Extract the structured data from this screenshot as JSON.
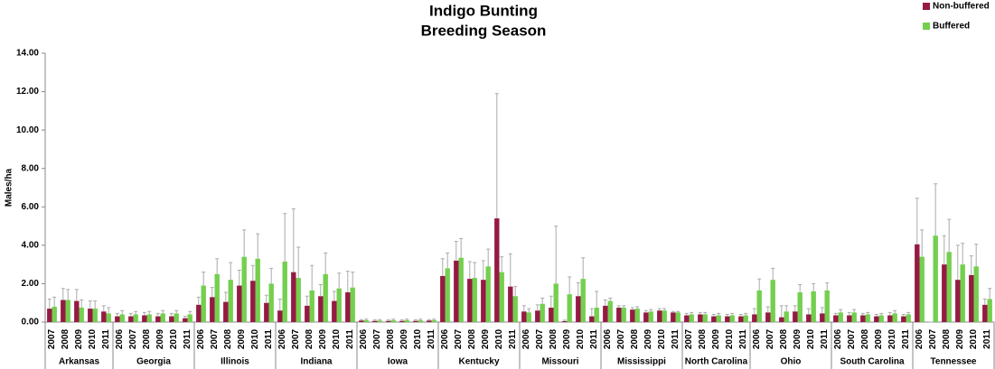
{
  "chart_data": {
    "type": "bar",
    "title": [
      "Indigo Bunting",
      "Breeding Season"
    ],
    "y_label": "Males/ha",
    "groups": [
      {
        "name": "Arkansas",
        "categories": [
          "2007",
          "2008",
          "2009",
          "2010",
          "2011"
        ]
      },
      {
        "name": "Georgia",
        "categories": [
          "2006",
          "2007",
          "2008",
          "2009",
          "2010",
          "2011"
        ]
      },
      {
        "name": "Illinois",
        "categories": [
          "2006",
          "2007",
          "2008",
          "2009",
          "2010",
          "2011"
        ]
      },
      {
        "name": "Indiana",
        "categories": [
          "2006",
          "2007",
          "2008",
          "2009",
          "2010",
          "2011"
        ]
      },
      {
        "name": "Iowa",
        "categories": [
          "2006",
          "2007",
          "2008",
          "2009",
          "2010",
          "2011"
        ]
      },
      {
        "name": "Kentucky",
        "categories": [
          "2006",
          "2007",
          "2008",
          "2009",
          "2010",
          "2011"
        ]
      },
      {
        "name": "Missouri",
        "categories": [
          "2006",
          "2007",
          "2008",
          "2009",
          "2010",
          "2011"
        ]
      },
      {
        "name": "Mississippi",
        "categories": [
          "2006",
          "2007",
          "2008",
          "2009",
          "2010",
          "2011"
        ]
      },
      {
        "name": "North Carolina",
        "categories": [
          "2007",
          "2008",
          "2009",
          "2010",
          "2011"
        ]
      },
      {
        "name": "Ohio",
        "categories": [
          "2006",
          "2007",
          "2008",
          "2009",
          "2010",
          "2011"
        ]
      },
      {
        "name": "South Carolina",
        "categories": [
          "2006",
          "2007",
          "2008",
          "2009",
          "2010",
          "2011"
        ]
      },
      {
        "name": "Tennessee",
        "categories": [
          "2006",
          "2007",
          "2008",
          "2009",
          "2010",
          "2011"
        ]
      }
    ],
    "series": [
      {
        "name": "Non-buffered",
        "color": "#951a43",
        "values": [
          0.7,
          1.15,
          1.1,
          0.7,
          0.55,
          0.3,
          0.3,
          0.35,
          0.3,
          0.3,
          0.2,
          0.9,
          1.3,
          1.05,
          1.9,
          2.15,
          1.0,
          0.6,
          2.6,
          0.85,
          1.35,
          1.1,
          1.55,
          0.08,
          0.06,
          0.06,
          0.06,
          0.06,
          0.08,
          2.4,
          3.2,
          2.25,
          2.2,
          5.4,
          1.85,
          0.55,
          0.6,
          0.75,
          0.05,
          1.35,
          0.3,
          0.85,
          0.75,
          0.65,
          0.5,
          0.6,
          0.5,
          0.35,
          0.4,
          0.3,
          0.3,
          0.3,
          0.4,
          0.5,
          0.25,
          0.55,
          0.4,
          0.45,
          0.35,
          0.35,
          0.35,
          0.3,
          0.35,
          0.3,
          4.05,
          0,
          3.0,
          2.2,
          2.45,
          0.9
        ],
        "errors": [
          0.5,
          0.6,
          0.6,
          0.4,
          0.3,
          0.15,
          0.15,
          0.15,
          0.15,
          0.15,
          0.1,
          0.4,
          0.5,
          0.5,
          0.8,
          0.8,
          0.4,
          0.6,
          3.3,
          0.5,
          0.6,
          0.5,
          1.1,
          0.05,
          0.05,
          0.05,
          0.05,
          0.05,
          0.05,
          0.9,
          1.0,
          0.9,
          1.0,
          6.5,
          1.7,
          0.3,
          0.3,
          0.6,
          0.05,
          0.7,
          0.4,
          0.3,
          0.1,
          0.1,
          0.1,
          0.1,
          0.05,
          0.1,
          0.1,
          0.1,
          0.1,
          0.1,
          0.3,
          0.3,
          0.6,
          0.3,
          0.3,
          0.3,
          0.1,
          0.15,
          0.1,
          0.1,
          0.15,
          0.1,
          2.4,
          0,
          1.5,
          1.8,
          1.0,
          0.3
        ]
      },
      {
        "name": "Buffered",
        "color": "#74cf4f",
        "values": [
          0.8,
          1.15,
          0.75,
          0.7,
          0.45,
          0.4,
          0.4,
          0.4,
          0.45,
          0.45,
          0.4,
          1.9,
          2.5,
          2.2,
          3.4,
          3.3,
          2.0,
          3.15,
          2.3,
          1.65,
          2.5,
          1.75,
          1.8,
          0.1,
          0.08,
          0.1,
          0.1,
          0.1,
          0.1,
          2.8,
          3.35,
          2.3,
          2.9,
          2.6,
          1.35,
          0.5,
          0.95,
          2.0,
          1.45,
          2.25,
          0.75,
          1.1,
          0.75,
          0.7,
          0.55,
          0.6,
          0.5,
          0.4,
          0.4,
          0.35,
          0.35,
          0.35,
          1.65,
          2.2,
          0.55,
          1.55,
          1.6,
          1.65,
          0.5,
          0.5,
          0.4,
          0.35,
          0.45,
          0.4,
          3.4,
          4.5,
          3.65,
          3.0,
          2.9,
          1.2
        ],
        "errors": [
          0.5,
          0.55,
          0.4,
          0.4,
          0.3,
          0.2,
          0.15,
          0.15,
          0.15,
          0.15,
          0.15,
          0.7,
          0.8,
          0.9,
          1.4,
          1.3,
          0.8,
          2.5,
          1.6,
          1.3,
          1.1,
          0.8,
          0.8,
          0.05,
          0.05,
          0.05,
          0.05,
          0.05,
          0.05,
          0.8,
          1.0,
          0.8,
          0.9,
          0.8,
          0.5,
          0.2,
          0.3,
          3.0,
          0.9,
          1.1,
          0.85,
          0.15,
          0.1,
          0.1,
          0.1,
          0.1,
          0.05,
          0.1,
          0.1,
          0.1,
          0.1,
          0.1,
          0.6,
          0.6,
          0.3,
          0.4,
          0.4,
          0.4,
          0.15,
          0.15,
          0.1,
          0.1,
          0.15,
          0.1,
          1.4,
          2.7,
          1.7,
          1.1,
          1.15,
          0.55
        ]
      }
    ],
    "ylim": [
      0,
      14
    ],
    "yticks": [
      {
        "value": 0,
        "label": "0.00"
      },
      {
        "value": 2,
        "label": "2.00"
      },
      {
        "value": 4,
        "label": "4.00"
      },
      {
        "value": 6,
        "label": "6.00"
      },
      {
        "value": 8,
        "label": "8.00"
      },
      {
        "value": 10,
        "label": "10.00"
      },
      {
        "value": 12,
        "label": "12.00"
      },
      {
        "value": 14,
        "label": "14.00"
      }
    ],
    "grid": false,
    "legend": "top-right"
  }
}
